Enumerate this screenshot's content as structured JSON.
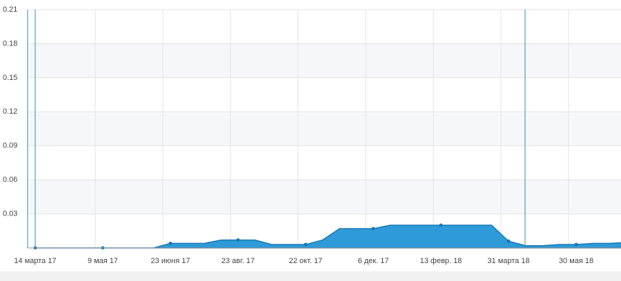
{
  "chart_data": {
    "type": "area",
    "categories": [
      "14 марта 17",
      null,
      null,
      null,
      "9 мая 17",
      null,
      null,
      null,
      "23 июня 17",
      null,
      null,
      null,
      "23 авг. 17",
      null,
      null,
      null,
      "22 окт. 17",
      null,
      null,
      null,
      "6 дек. 17",
      null,
      null,
      null,
      "13 февр. 18",
      null,
      null,
      null,
      "31 марта 18",
      null,
      null,
      null,
      "30 мая 18",
      null,
      null,
      null
    ],
    "values": [
      0,
      0,
      0,
      0,
      0,
      0,
      0,
      0,
      0.004,
      0.004,
      0.004,
      0.007,
      0.007,
      0.007,
      0.003,
      0.003,
      0.003,
      0.007,
      0.017,
      0.017,
      0.017,
      0.02,
      0.02,
      0.02,
      0.02,
      0.02,
      0.02,
      0.02,
      0.006,
      0.002,
      0.002,
      0.003,
      0.003,
      0.004,
      0.004,
      0.005
    ],
    "color": "#2e9bd8",
    "ylim": [
      0,
      0.21
    ],
    "yticks": [
      0.03,
      0.06,
      0.09,
      0.12,
      0.15,
      0.18,
      0.21
    ],
    "grid": true
  }
}
